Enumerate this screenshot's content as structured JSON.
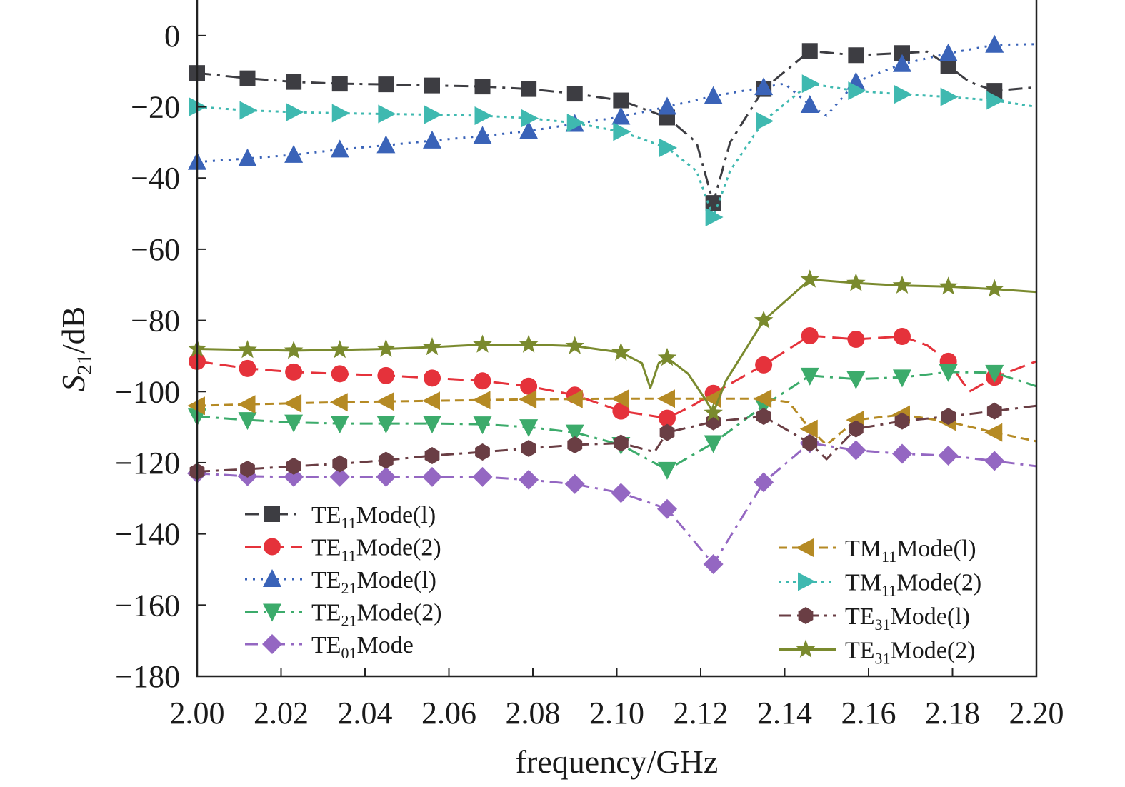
{
  "chart_data": {
    "type": "line",
    "xlabel": "frequency/GHz",
    "ylabel": {
      "main": "S",
      "sub": "21",
      "unit": "/dB"
    },
    "xlim": [
      2.0,
      2.2
    ],
    "ylim": [
      -180,
      10
    ],
    "x_ticks": [
      "2.00",
      "2.02",
      "2.04",
      "2.06",
      "2.08",
      "2.10",
      "2.12",
      "2.14",
      "2.16",
      "2.18",
      "2.20"
    ],
    "y_ticks": [
      "0",
      "−20",
      "−40",
      "−60",
      "−80",
      "−100",
      "−120",
      "−140",
      "−160",
      "−180"
    ],
    "grid": false,
    "series": [
      {
        "name": "TE11Mode(l)",
        "name_parts": [
          "TE",
          "11",
          "Mode(l)"
        ],
        "color": "#3d3d42",
        "marker": "square",
        "dash": "20 8 4 8",
        "x": [
          2.0,
          2.012,
          2.023,
          2.034,
          2.045,
          2.056,
          2.068,
          2.079,
          2.09,
          2.101,
          2.112,
          2.119,
          2.123,
          2.127,
          2.135,
          2.146,
          2.157,
          2.168,
          2.174,
          2.179,
          2.184,
          2.19,
          2.2
        ],
        "y": [
          -10.5,
          -12,
          -13,
          -13.5,
          -13.7,
          -14,
          -14.3,
          -15,
          -16.3,
          -18.2,
          -23,
          -30,
          -47,
          -30,
          -15,
          -4.3,
          -5.5,
          -4.9,
          -4.5,
          -8.5,
          -13,
          -15.5,
          -14.5
        ],
        "markers": [
          [
            2.0,
            -10.5
          ],
          [
            2.012,
            -12
          ],
          [
            2.023,
            -13
          ],
          [
            2.034,
            -13.5
          ],
          [
            2.045,
            -13.7
          ],
          [
            2.056,
            -14
          ],
          [
            2.068,
            -14.3
          ],
          [
            2.079,
            -15
          ],
          [
            2.09,
            -16.3
          ],
          [
            2.101,
            -18.2
          ],
          [
            2.112,
            -23
          ],
          [
            2.123,
            -47
          ],
          [
            2.135,
            -15
          ],
          [
            2.146,
            -4.3
          ],
          [
            2.157,
            -5.5
          ],
          [
            2.168,
            -4.9
          ],
          [
            2.179,
            -8.5
          ],
          [
            2.19,
            -15.5
          ]
        ]
      },
      {
        "name": "TE11Mode(2)",
        "name_parts": [
          "TE",
          "11",
          "Mode(2)"
        ],
        "color": "#e5323b",
        "marker": "circle",
        "dash": "22 10",
        "x": [
          2.0,
          2.012,
          2.023,
          2.034,
          2.045,
          2.056,
          2.068,
          2.079,
          2.09,
          2.101,
          2.112,
          2.118,
          2.123,
          2.135,
          2.146,
          2.157,
          2.168,
          2.174,
          2.179,
          2.184,
          2.19,
          2.2
        ],
        "y": [
          -91.5,
          -93.5,
          -94.5,
          -95,
          -95.5,
          -96.2,
          -97,
          -98.5,
          -101,
          -105.5,
          -107.5,
          -104,
          -100.5,
          -92.5,
          -84.3,
          -85.3,
          -84.5,
          -87,
          -91.5,
          -100,
          -96,
          -91.5
        ],
        "markers": [
          [
            2.0,
            -91.5
          ],
          [
            2.012,
            -93.5
          ],
          [
            2.023,
            -94.5
          ],
          [
            2.034,
            -95
          ],
          [
            2.045,
            -95.5
          ],
          [
            2.056,
            -96.2
          ],
          [
            2.068,
            -97
          ],
          [
            2.079,
            -98.5
          ],
          [
            2.09,
            -101
          ],
          [
            2.101,
            -105.5
          ],
          [
            2.112,
            -107.5
          ],
          [
            2.123,
            -100.5
          ],
          [
            2.135,
            -92.5
          ],
          [
            2.146,
            -84.3
          ],
          [
            2.157,
            -85.3
          ],
          [
            2.168,
            -84.5
          ],
          [
            2.179,
            -91.5
          ],
          [
            2.19,
            -96
          ]
        ]
      },
      {
        "name": "TE21Mode(l)",
        "name_parts": [
          "TE",
          "21",
          "Mode(l)"
        ],
        "color": "#3a63b8",
        "marker": "triangle-up",
        "dash": "3 8",
        "x": [
          2.0,
          2.012,
          2.023,
          2.034,
          2.045,
          2.056,
          2.068,
          2.079,
          2.09,
          2.101,
          2.112,
          2.123,
          2.135,
          2.14,
          2.146,
          2.15,
          2.157,
          2.168,
          2.179,
          2.19,
          2.2
        ],
        "y": [
          -35.5,
          -34.5,
          -33.5,
          -32,
          -30.8,
          -29.5,
          -28.2,
          -26.8,
          -24.8,
          -22.8,
          -20,
          -17,
          -14.5,
          -13.5,
          -19.5,
          -22.5,
          -13,
          -8,
          -5,
          -2.6,
          -2.4
        ],
        "markers": [
          [
            2.0,
            -35.5
          ],
          [
            2.012,
            -34.5
          ],
          [
            2.023,
            -33.5
          ],
          [
            2.034,
            -32
          ],
          [
            2.045,
            -30.8
          ],
          [
            2.056,
            -29.5
          ],
          [
            2.068,
            -28.2
          ],
          [
            2.079,
            -26.8
          ],
          [
            2.09,
            -24.8
          ],
          [
            2.101,
            -22.8
          ],
          [
            2.112,
            -20
          ],
          [
            2.123,
            -17
          ],
          [
            2.135,
            -14.5
          ],
          [
            2.146,
            -19.5
          ],
          [
            2.157,
            -13
          ],
          [
            2.168,
            -8
          ],
          [
            2.179,
            -5
          ],
          [
            2.19,
            -2.6
          ]
        ]
      },
      {
        "name": "TE21Mode(2)",
        "name_parts": [
          "TE",
          "21",
          "Mode(2)"
        ],
        "color": "#3cab6b",
        "marker": "triangle-down",
        "dash": "18 8 4 8",
        "x": [
          2.0,
          2.012,
          2.023,
          2.034,
          2.045,
          2.056,
          2.068,
          2.079,
          2.09,
          2.101,
          2.112,
          2.123,
          2.135,
          2.146,
          2.157,
          2.168,
          2.179,
          2.19,
          2.2
        ],
        "y": [
          -107,
          -108,
          -108.7,
          -109,
          -109,
          -109,
          -109.2,
          -110,
          -111.5,
          -115,
          -122,
          -114.5,
          -104,
          -95.5,
          -96.5,
          -96,
          -94.5,
          -94.7,
          -98.5
        ],
        "markers": [
          [
            2.0,
            -107
          ],
          [
            2.012,
            -108
          ],
          [
            2.023,
            -108.7
          ],
          [
            2.034,
            -109
          ],
          [
            2.045,
            -109
          ],
          [
            2.056,
            -109
          ],
          [
            2.068,
            -109.2
          ],
          [
            2.079,
            -110
          ],
          [
            2.09,
            -111.5
          ],
          [
            2.101,
            -115
          ],
          [
            2.112,
            -122
          ],
          [
            2.123,
            -114.5
          ],
          [
            2.135,
            -104
          ],
          [
            2.146,
            -95.5
          ],
          [
            2.157,
            -96.5
          ],
          [
            2.168,
            -96
          ],
          [
            2.179,
            -94.5
          ],
          [
            2.19,
            -94.7
          ]
        ]
      },
      {
        "name": "TE01Mode",
        "name_parts": [
          "TE",
          "01",
          "Mode"
        ],
        "color": "#9467c2",
        "marker": "diamond",
        "dash": "18 8 4 8",
        "x": [
          2.0,
          2.012,
          2.023,
          2.034,
          2.045,
          2.056,
          2.068,
          2.079,
          2.09,
          2.101,
          2.112,
          2.123,
          2.135,
          2.146,
          2.157,
          2.168,
          2.179,
          2.19,
          2.2
        ],
        "y": [
          -123,
          -123.8,
          -124,
          -124,
          -124,
          -124,
          -124,
          -124.8,
          -126,
          -128.5,
          -133,
          -148.5,
          -125.5,
          -114.5,
          -116.5,
          -117.5,
          -118,
          -119.5,
          -121
        ],
        "markers": [
          [
            2.0,
            -123
          ],
          [
            2.012,
            -123.8
          ],
          [
            2.023,
            -124
          ],
          [
            2.034,
            -124
          ],
          [
            2.045,
            -124
          ],
          [
            2.056,
            -124
          ],
          [
            2.068,
            -124
          ],
          [
            2.079,
            -124.8
          ],
          [
            2.09,
            -126
          ],
          [
            2.101,
            -128.5
          ],
          [
            2.112,
            -133
          ],
          [
            2.123,
            -148.5
          ],
          [
            2.135,
            -125.5
          ],
          [
            2.146,
            -114.5
          ],
          [
            2.157,
            -116.5
          ],
          [
            2.168,
            -117.5
          ],
          [
            2.179,
            -118
          ],
          [
            2.19,
            -119.5
          ]
        ]
      },
      {
        "name": "TM11Mode(l)",
        "name_parts": [
          "TM",
          "11",
          "Mode(l)"
        ],
        "color": "#b58a24",
        "marker": "triangle-left",
        "dash": "12 7",
        "x": [
          2.0,
          2.012,
          2.023,
          2.034,
          2.045,
          2.056,
          2.068,
          2.079,
          2.09,
          2.101,
          2.112,
          2.123,
          2.135,
          2.141,
          2.146,
          2.15,
          2.157,
          2.168,
          2.179,
          2.19,
          2.2
        ],
        "y": [
          -104,
          -103.6,
          -103.3,
          -103,
          -102.8,
          -102.6,
          -102.4,
          -102.2,
          -102.1,
          -102,
          -102,
          -102,
          -102,
          -103,
          -110.5,
          -115,
          -108,
          -106.5,
          -108.5,
          -111.5,
          -114
        ],
        "markers": [
          [
            2.0,
            -104
          ],
          [
            2.012,
            -103.6
          ],
          [
            2.023,
            -103.3
          ],
          [
            2.034,
            -103
          ],
          [
            2.045,
            -102.8
          ],
          [
            2.056,
            -102.6
          ],
          [
            2.068,
            -102.4
          ],
          [
            2.079,
            -102.2
          ],
          [
            2.09,
            -102.1
          ],
          [
            2.101,
            -102
          ],
          [
            2.112,
            -102
          ],
          [
            2.123,
            -102
          ],
          [
            2.135,
            -102
          ],
          [
            2.146,
            -110.5
          ],
          [
            2.157,
            -108
          ],
          [
            2.168,
            -106.5
          ],
          [
            2.179,
            -108.5
          ],
          [
            2.19,
            -111.5
          ]
        ]
      },
      {
        "name": "TM11Mode(2)",
        "name_parts": [
          "TM",
          "11",
          "Mode(2)"
        ],
        "color": "#3fb9b0",
        "marker": "triangle-right",
        "dash": "4 6",
        "x": [
          2.0,
          2.012,
          2.023,
          2.034,
          2.045,
          2.056,
          2.068,
          2.079,
          2.09,
          2.101,
          2.112,
          2.119,
          2.123,
          2.127,
          2.135,
          2.146,
          2.157,
          2.168,
          2.179,
          2.19,
          2.2
        ],
        "y": [
          -20,
          -21,
          -21.5,
          -21.8,
          -22,
          -22.2,
          -22.5,
          -23.2,
          -24.5,
          -27,
          -31.5,
          -38,
          -51,
          -38,
          -24,
          -13.5,
          -15.5,
          -16.5,
          -17.2,
          -18.2,
          -20
        ],
        "markers": [
          [
            2.0,
            -20
          ],
          [
            2.012,
            -21
          ],
          [
            2.023,
            -21.5
          ],
          [
            2.034,
            -21.8
          ],
          [
            2.045,
            -22
          ],
          [
            2.056,
            -22.2
          ],
          [
            2.068,
            -22.5
          ],
          [
            2.079,
            -23.2
          ],
          [
            2.09,
            -24.5
          ],
          [
            2.101,
            -27
          ],
          [
            2.112,
            -31.5
          ],
          [
            2.123,
            -51
          ],
          [
            2.135,
            -24
          ],
          [
            2.146,
            -13.5
          ],
          [
            2.157,
            -15.5
          ],
          [
            2.168,
            -16.5
          ],
          [
            2.179,
            -17.2
          ],
          [
            2.19,
            -18.2
          ]
        ]
      },
      {
        "name": "TE31Mode(l)",
        "name_parts": [
          "TE",
          "31",
          "Mode(l)"
        ],
        "color": "#6a3e44",
        "marker": "hexagon",
        "dash": "18 8 4 8",
        "x": [
          2.0,
          2.012,
          2.023,
          2.034,
          2.045,
          2.056,
          2.068,
          2.079,
          2.09,
          2.101,
          2.109,
          2.112,
          2.123,
          2.135,
          2.146,
          2.15,
          2.157,
          2.168,
          2.179,
          2.19,
          2.2
        ],
        "y": [
          -122.5,
          -121.8,
          -121,
          -120.3,
          -119.3,
          -118,
          -117,
          -116,
          -115,
          -114.5,
          -117,
          -111.5,
          -108.5,
          -107,
          -114.5,
          -119,
          -110.5,
          -108.3,
          -107,
          -105.5,
          -104
        ],
        "markers": [
          [
            2.0,
            -122.5
          ],
          [
            2.012,
            -121.8
          ],
          [
            2.023,
            -121
          ],
          [
            2.034,
            -120.3
          ],
          [
            2.045,
            -119.3
          ],
          [
            2.056,
            -118
          ],
          [
            2.068,
            -117
          ],
          [
            2.079,
            -116
          ],
          [
            2.09,
            -115
          ],
          [
            2.101,
            -114.5
          ],
          [
            2.112,
            -111.5
          ],
          [
            2.123,
            -108.5
          ],
          [
            2.135,
            -107
          ],
          [
            2.146,
            -114.5
          ],
          [
            2.157,
            -110.5
          ],
          [
            2.168,
            -108.3
          ],
          [
            2.179,
            -107
          ],
          [
            2.19,
            -105.5
          ]
        ]
      },
      {
        "name": "TE31Mode(2)",
        "name_parts": [
          "TE",
          "31",
          "Mode(2)"
        ],
        "color": "#7a8a2e",
        "marker": "star",
        "dash": "",
        "x": [
          2.0,
          2.012,
          2.023,
          2.034,
          2.045,
          2.056,
          2.068,
          2.079,
          2.09,
          2.101,
          2.106,
          2.108,
          2.11,
          2.112,
          2.117,
          2.121,
          2.123,
          2.126,
          2.135,
          2.146,
          2.157,
          2.168,
          2.179,
          2.19,
          2.2
        ],
        "y": [
          -88,
          -88.3,
          -88.5,
          -88.3,
          -88,
          -87.5,
          -86.8,
          -86.8,
          -87.2,
          -89,
          -92,
          -99,
          -92,
          -90.5,
          -95,
          -102,
          -106,
          -97,
          -80,
          -68.5,
          -69.5,
          -70.2,
          -70.5,
          -71.2,
          -72
        ],
        "markers": [
          [
            2.0,
            -88
          ],
          [
            2.012,
            -88.3
          ],
          [
            2.023,
            -88.5
          ],
          [
            2.034,
            -88.3
          ],
          [
            2.045,
            -88
          ],
          [
            2.056,
            -87.5
          ],
          [
            2.068,
            -86.8
          ],
          [
            2.079,
            -86.8
          ],
          [
            2.09,
            -87.2
          ],
          [
            2.101,
            -89
          ],
          [
            2.112,
            -90.5
          ],
          [
            2.123,
            -106
          ],
          [
            2.135,
            -80
          ],
          [
            2.146,
            -68.5
          ],
          [
            2.157,
            -69.5
          ],
          [
            2.168,
            -70.2
          ],
          [
            2.179,
            -70.5
          ],
          [
            2.19,
            -71.2
          ]
        ]
      }
    ],
    "legend": [
      {
        "placement": "bottom-left",
        "series": [
          0,
          1,
          2,
          3,
          4
        ]
      },
      {
        "placement": "bottom-right",
        "series": [
          5,
          6,
          7,
          8
        ]
      }
    ]
  }
}
